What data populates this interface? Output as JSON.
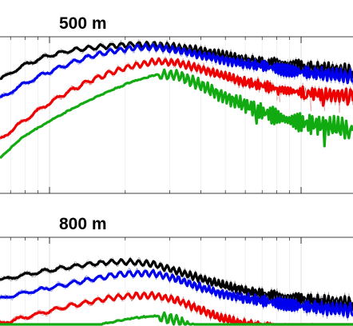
{
  "chart_data": [
    {
      "type": "line",
      "title": "500 m",
      "xlabel": "",
      "ylabel": "",
      "x_scale": "log",
      "grid": true,
      "series": [
        {
          "color": "#000000",
          "y": [
            0.64,
            0.76,
            0.84,
            0.89,
            0.92,
            0.94,
            0.95,
            0.95,
            0.93,
            0.9,
            0.86,
            0.82,
            0.79,
            0.77,
            0.75,
            0.73,
            0.71
          ]
        },
        {
          "color": "#0000ee",
          "y": [
            0.47,
            0.59,
            0.69,
            0.77,
            0.84,
            0.89,
            0.92,
            0.93,
            0.9,
            0.86,
            0.82,
            0.78,
            0.76,
            0.72,
            0.7,
            0.68,
            0.66
          ]
        },
        {
          "color": "#ee0000",
          "y": [
            0.1,
            0.26,
            0.4,
            0.52,
            0.62,
            0.7,
            0.76,
            0.8,
            0.79,
            0.74,
            0.68,
            0.62,
            0.58,
            0.54,
            0.52,
            0.5,
            0.5
          ]
        },
        {
          "color": "#11aa11",
          "y": [
            -0.06,
            0.12,
            0.24,
            0.35,
            0.45,
            0.54,
            0.62,
            0.68,
            0.68,
            0.6,
            0.5,
            0.42,
            0.34,
            0.28,
            0.24,
            0.22,
            0.2
          ]
        }
      ]
    },
    {
      "type": "line",
      "title": "800 m",
      "xlabel": "",
      "ylabel": "",
      "x_scale": "log",
      "grid": true,
      "series": [
        {
          "color": "#000000",
          "y": [
            0.64,
            0.68,
            0.72,
            0.75,
            0.78,
            0.8,
            0.8,
            0.78,
            0.72,
            0.66,
            0.6,
            0.55,
            0.51,
            0.48,
            0.46,
            0.44,
            0.43
          ]
        },
        {
          "color": "#0000ee",
          "y": [
            0.47,
            0.52,
            0.56,
            0.6,
            0.64,
            0.68,
            0.7,
            0.7,
            0.65,
            0.58,
            0.52,
            0.48,
            0.45,
            0.42,
            0.4,
            0.38,
            0.37
          ]
        },
        {
          "color": "#ee0000",
          "y": [
            0.25,
            0.3,
            0.35,
            0.4,
            0.44,
            0.48,
            0.5,
            0.5,
            0.46,
            0.38,
            0.3,
            0.25,
            0.22,
            0.2,
            0.18,
            0.16,
            0.15
          ]
        },
        {
          "color": "#11aa11",
          "y": [
            0.08,
            0.11,
            0.14,
            0.18,
            0.22,
            0.26,
            0.3,
            0.32,
            0.28,
            0.18,
            0.08,
            0.04,
            0.02,
            0.0,
            -0.02,
            -0.02,
            -0.02
          ]
        }
      ]
    }
  ]
}
